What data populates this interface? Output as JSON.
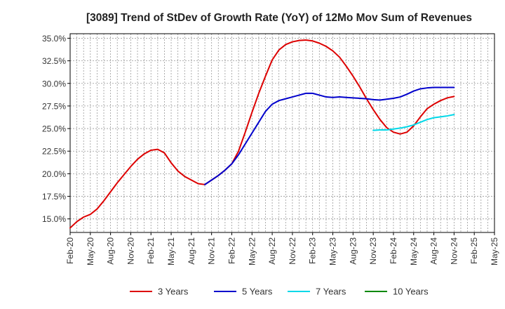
{
  "chart_data": {
    "type": "line",
    "title": "[3089]  Trend of StDev of Growth Rate (YoY) of 12Mo Mov Sum of Revenues",
    "xlabel": "",
    "ylabel": "",
    "ylim": [
      13.5,
      35.5
    ],
    "y_ticks": [
      15.0,
      17.5,
      20.0,
      22.5,
      25.0,
      27.5,
      30.0,
      32.5,
      35.0
    ],
    "y_tick_labels": [
      "15.0%",
      "17.5%",
      "20.0%",
      "22.5%",
      "25.0%",
      "27.5%",
      "30.0%",
      "32.5%",
      "35.0%"
    ],
    "x_tick_labels": [
      "Feb-20",
      "May-20",
      "Aug-20",
      "Nov-20",
      "Feb-21",
      "May-21",
      "Aug-21",
      "Nov-21",
      "Feb-22",
      "May-22",
      "Aug-22",
      "Nov-22",
      "Feb-23",
      "May-23",
      "Aug-23",
      "Nov-23",
      "Feb-24",
      "May-24",
      "Aug-24",
      "Nov-24",
      "Feb-25",
      "May-25"
    ],
    "grid": true,
    "legend_position": "bottom",
    "series": [
      {
        "name": "3 Years",
        "color": "#dd0000",
        "start_index": 0,
        "values": [
          14.0,
          14.7,
          15.2,
          15.5,
          16.1,
          17.0,
          18.0,
          19.0,
          19.9,
          20.8,
          21.6,
          22.2,
          22.6,
          22.7,
          22.3,
          21.2,
          20.3,
          19.7,
          19.3,
          18.9,
          18.8,
          19.3,
          19.8,
          20.4,
          21.1,
          22.5,
          24.6,
          26.8,
          28.9,
          30.8,
          32.6,
          33.7,
          34.3,
          34.6,
          34.75,
          34.8,
          34.7,
          34.45,
          34.1,
          33.6,
          32.9,
          31.9,
          30.8,
          29.6,
          28.3,
          27.1,
          26.0,
          25.1,
          24.6,
          24.4,
          24.6,
          25.3,
          26.3,
          27.2,
          27.7,
          28.1,
          28.4,
          28.55
        ]
      },
      {
        "name": "5 Years",
        "color": "#0000cc",
        "start_index": 20,
        "values": [
          18.8,
          19.3,
          19.8,
          20.4,
          21.1,
          22.1,
          23.3,
          24.5,
          25.7,
          26.9,
          27.7,
          28.1,
          28.3,
          28.5,
          28.7,
          28.9,
          28.9,
          28.7,
          28.5,
          28.45,
          28.5,
          28.45,
          28.4,
          28.35,
          28.3,
          28.2,
          28.15,
          28.25,
          28.35,
          28.5,
          28.8,
          29.15,
          29.4,
          29.5,
          29.55,
          29.55,
          29.55,
          29.55
        ]
      },
      {
        "name": "7 Years",
        "color": "#00d8e8",
        "start_index": 45,
        "values": [
          24.8,
          24.85,
          24.85,
          24.95,
          25.05,
          25.2,
          25.4,
          25.7,
          26.0,
          26.2,
          26.3,
          26.4,
          26.55
        ]
      },
      {
        "name": "10 Years",
        "color": "#008800",
        "start_index": 0,
        "values": []
      }
    ]
  }
}
